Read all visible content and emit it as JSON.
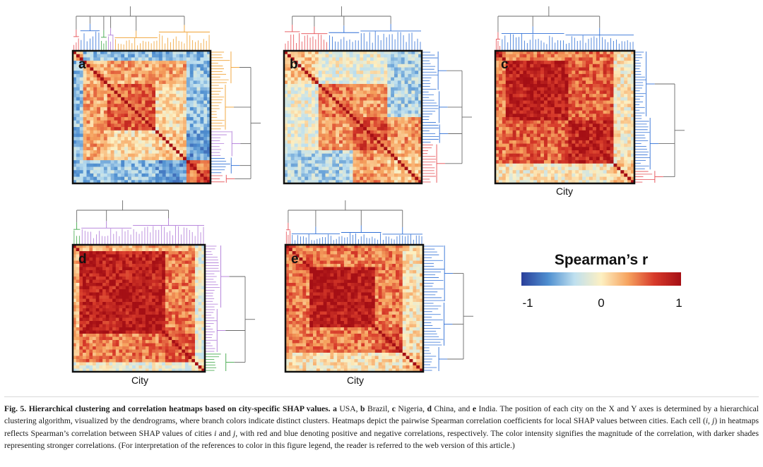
{
  "figure": {
    "panels": [
      {
        "letter": "a",
        "country": "USA",
        "axis_label": ""
      },
      {
        "letter": "b",
        "country": "Brazil",
        "axis_label": ""
      },
      {
        "letter": "c",
        "country": "Nigeria",
        "axis_label": "City"
      },
      {
        "letter": "d",
        "country": "China",
        "axis_label": "City"
      },
      {
        "letter": "e",
        "country": "India",
        "axis_label": "City"
      }
    ],
    "colorbar": {
      "title": "Spearman’s r",
      "ticks": [
        "-1",
        "0",
        "1"
      ],
      "colors": [
        "#2a3f9a",
        "#4f8fd0",
        "#bfe0ef",
        "#fdf0c2",
        "#f6a35f",
        "#d73a2a",
        "#a50f15"
      ]
    },
    "cluster_colors": {
      "orange": "#f0a030",
      "blue": "#2f6fd6",
      "red": "#e64c52",
      "purple": "#b07ad8",
      "green": "#3fa748",
      "gray": "#6a6a6a"
    }
  },
  "caption": {
    "fig_label": "Fig. 5.",
    "title": "Hierarchical clustering and correlation heatmaps based on city-specific SHAP values.",
    "p1": "a",
    "p2": " USA, ",
    "p3": "b",
    "p4": " Brazil, ",
    "p5": "c",
    "p6": " Nigeria, ",
    "p7": "d",
    "p8": " China, and ",
    "p9": "e",
    "p10": " India. The position of each city on the X and Y axes is determined by a hierarchical clustering algorithm, visualized by the dendrograms, where branch colors indicate distinct clusters. Heatmaps depict the pairwise Spearman correlation coefficients for local SHAP values between cities. Each cell (",
    "p11": "i",
    "p12": ", ",
    "p13": "j",
    "p14": ") in heatmaps reflects Spearman’s correlation between SHAP values of cities ",
    "p15": "i",
    "p16": " and ",
    "p17": "j",
    "p18": ", with red and blue denoting positive and negative correlations, respectively. The color intensity signifies the magnitude of the correlation, with darker shades representing stronger correlations.  (For interpretation of the references to color in this figure legend, the reader is referred to the web version of this article.)"
  }
}
